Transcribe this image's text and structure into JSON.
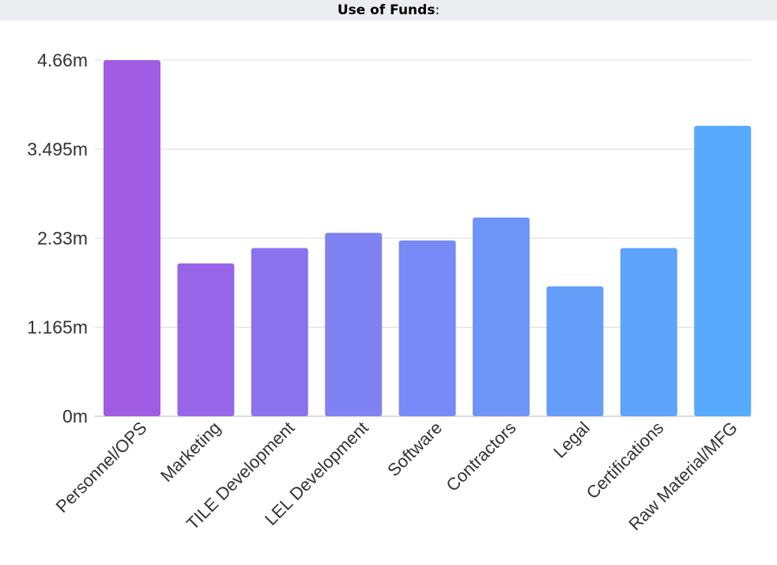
{
  "header": {
    "title": "Use of Funds",
    "suffix": ":"
  },
  "chart_data": {
    "type": "bar",
    "title": "Use of Funds",
    "xlabel": "",
    "ylabel": "",
    "ylim": [
      0,
      4660000
    ],
    "yticks": [
      0,
      1165000,
      2330000,
      3495000,
      4660000
    ],
    "ytick_labels": [
      "0m",
      "1.165m",
      "2.33m",
      "3.495m",
      "4.66m"
    ],
    "grid": true,
    "categories": [
      "Personnel/OPS",
      "Marketing",
      "TILE Development",
      "LEL Development",
      "Software",
      "Contractors",
      "Legal",
      "Certifications",
      "Raw Material/MFG"
    ],
    "values": [
      4660000,
      2000000,
      2200000,
      2400000,
      2300000,
      2600000,
      1700000,
      2200000,
      3800000
    ],
    "colors": [
      "#a05ce3",
      "#9766e8",
      "#8b72ee",
      "#7f82f3",
      "#788af8",
      "#6e94f7",
      "#649ef8",
      "#5ea4fa",
      "#58aafd"
    ]
  }
}
